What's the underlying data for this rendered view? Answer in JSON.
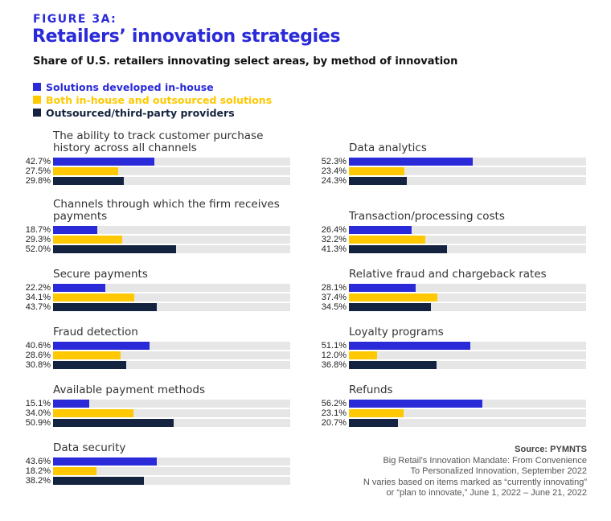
{
  "figure_label": "FIGURE 3A:",
  "title": "Retailers’ innovation strategies",
  "subtitle": "Share of U.S. retailers innovating select areas, by method of innovation",
  "colors": {
    "inhouse": "#2a2ad9",
    "both": "#ffc800",
    "outsourced": "#14233f",
    "track": "#e6e6e6"
  },
  "source": {
    "label": "Source: PYMNTS",
    "line1": "Big Retail’s Innovation Mandate: From Convenience",
    "line2": "To Personalized Innovation, September 2022",
    "line3": "N varies based on items marked as “currently innovating”",
    "line4": "or “plan to innovate,” June 1, 2022 – June 21, 2022"
  },
  "chart_data": {
    "type": "bar",
    "orientation": "horizontal",
    "xlim": [
      0,
      100
    ],
    "unit": "%",
    "legend": [
      "Solutions developed in-house",
      "Both in-house and outsourced solutions",
      "Outsourced/third-party providers"
    ],
    "groups": [
      {
        "title": "The ability to track customer purchase history across all channels",
        "values": [
          42.7,
          27.5,
          29.8
        ],
        "labels": [
          "42.7%",
          "27.5%",
          "29.8%"
        ]
      },
      {
        "title": "Channels through which the firm receives payments",
        "values": [
          18.7,
          29.3,
          52.0
        ],
        "labels": [
          "18.7%",
          "29.3%",
          "52.0%"
        ]
      },
      {
        "title": "Secure payments",
        "values": [
          22.2,
          34.1,
          43.7
        ],
        "labels": [
          "22.2%",
          "34.1%",
          "43.7%"
        ]
      },
      {
        "title": "Fraud detection",
        "values": [
          40.6,
          28.6,
          30.8
        ],
        "labels": [
          "40.6%",
          "28.6%",
          "30.8%"
        ]
      },
      {
        "title": "Available payment methods",
        "values": [
          15.1,
          34.0,
          50.9
        ],
        "labels": [
          "15.1%",
          "34.0%",
          "50.9%"
        ]
      },
      {
        "title": "Data security",
        "values": [
          43.6,
          18.2,
          38.2
        ],
        "labels": [
          "43.6%",
          "18.2%",
          "38.2%"
        ]
      },
      {
        "title": "Data analytics",
        "values": [
          52.3,
          23.4,
          24.3
        ],
        "labels": [
          "52.3%",
          "23.4%",
          "24.3%"
        ]
      },
      {
        "title": "Transaction/processing costs",
        "values": [
          26.4,
          32.2,
          41.3
        ],
        "labels": [
          "26.4%",
          "32.2%",
          "41.3%"
        ]
      },
      {
        "title": "Relative fraud and chargeback rates",
        "values": [
          28.1,
          37.4,
          34.5
        ],
        "labels": [
          "28.1%",
          "37.4%",
          "34.5%"
        ]
      },
      {
        "title": "Loyalty programs",
        "values": [
          51.1,
          12.0,
          36.8
        ],
        "labels": [
          "51.1%",
          "12.0%",
          "36.8%"
        ]
      },
      {
        "title": "Refunds",
        "values": [
          56.2,
          23.1,
          20.7
        ],
        "labels": [
          "56.2%",
          "23.1%",
          "20.7%"
        ]
      }
    ]
  }
}
